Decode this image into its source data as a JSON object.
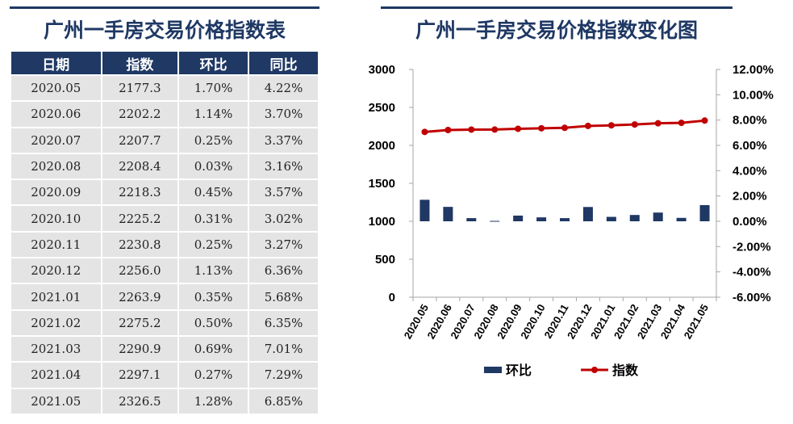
{
  "table": {
    "title": "广州一手房交易价格指数表",
    "columns": [
      "日期",
      "指数",
      "环比",
      "同比"
    ],
    "rows": [
      [
        "2020.05",
        "2177.3",
        "1.70%",
        "4.22%"
      ],
      [
        "2020.06",
        "2202.2",
        "1.14%",
        "3.70%"
      ],
      [
        "2020.07",
        "2207.7",
        "0.25%",
        "3.37%"
      ],
      [
        "2020.08",
        "2208.4",
        "0.03%",
        "3.16%"
      ],
      [
        "2020.09",
        "2218.3",
        "0.45%",
        "3.57%"
      ],
      [
        "2020.10",
        "2225.2",
        "0.31%",
        "3.02%"
      ],
      [
        "2020.11",
        "2230.8",
        "0.25%",
        "3.27%"
      ],
      [
        "2020.12",
        "2256.0",
        "1.13%",
        "6.36%"
      ],
      [
        "2021.01",
        "2263.9",
        "0.35%",
        "5.68%"
      ],
      [
        "2021.02",
        "2275.2",
        "0.50%",
        "6.35%"
      ],
      [
        "2021.03",
        "2290.9",
        "0.69%",
        "7.01%"
      ],
      [
        "2021.04",
        "2297.1",
        "0.27%",
        "7.29%"
      ],
      [
        "2021.05",
        "2326.5",
        "1.28%",
        "6.85%"
      ]
    ]
  },
  "chart_data": {
    "type": "bar",
    "title": "广州一手房交易价格指数变化图",
    "categories": [
      "2020.05",
      "2020.06",
      "2020.07",
      "2020.08",
      "2020.09",
      "2020.10",
      "2020.11",
      "2020.12",
      "2021.01",
      "2021.02",
      "2021.03",
      "2021.04",
      "2021.05"
    ],
    "series": [
      {
        "name": "环比",
        "type": "bar",
        "axis": "right",
        "color": "#1f3864",
        "values": [
          1.7,
          1.14,
          0.25,
          0.03,
          0.45,
          0.31,
          0.25,
          1.13,
          0.35,
          0.5,
          0.69,
          0.27,
          1.28
        ]
      },
      {
        "name": "指数",
        "type": "line",
        "axis": "left",
        "color": "#c00000",
        "values": [
          2177.3,
          2202.2,
          2207.7,
          2208.4,
          2218.3,
          2225.2,
          2230.8,
          2256.0,
          2263.9,
          2275.2,
          2290.9,
          2297.1,
          2326.5
        ]
      }
    ],
    "y_left": {
      "min": 0,
      "max": 3000,
      "step": 500,
      "ticks": [
        "0",
        "500",
        "1000",
        "1500",
        "2000",
        "2500",
        "3000"
      ]
    },
    "y_right": {
      "min": -6,
      "max": 12,
      "step": 2,
      "ticks": [
        "-6.00%",
        "-4.00%",
        "-2.00%",
        "0.00%",
        "2.00%",
        "4.00%",
        "6.00%",
        "8.00%",
        "10.00%",
        "12.00%"
      ]
    },
    "legend": {
      "position": "bottom",
      "items": [
        "环比",
        "指数"
      ]
    },
    "grid": false,
    "colors": {
      "accent": "#1f3864",
      "line": "#c00000",
      "cell": "#e4e4e4"
    }
  }
}
